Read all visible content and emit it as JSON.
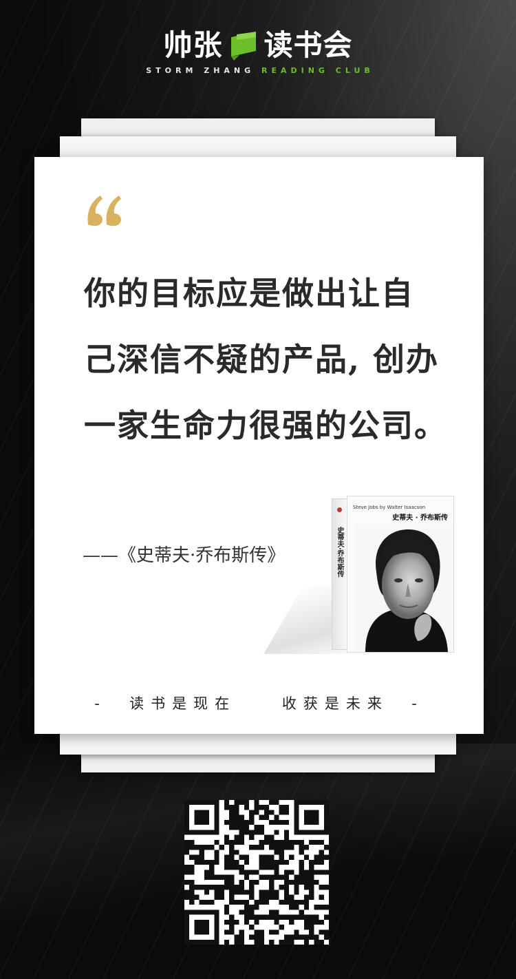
{
  "logo": {
    "name_cn_left": "帅张",
    "name_cn_right": "读书会",
    "name_en_white": "STORM ZHANG",
    "name_en_green": "READING CLUB",
    "accent_color": "#6cbf2a"
  },
  "card": {
    "quote_lines": [
      "你的目标应是做出让自",
      "己深信不疑的产品, 创办",
      "一家生命力很强的公司。"
    ],
    "source": "——《史蒂夫·乔布斯传》",
    "slogan": "-  读书是现在    收获是未来  -",
    "quote_mark_color": "#d9b25f",
    "book": {
      "cover_en": "Steve Jobs by Walter Isaacson",
      "cover_cn": "史蒂夫 · 乔布斯传",
      "spine_title": "史蒂夫·乔布斯传"
    }
  },
  "icons": {
    "quote": "quote-icon",
    "logo": "book-logo-icon",
    "qr": "qr-code-icon"
  }
}
